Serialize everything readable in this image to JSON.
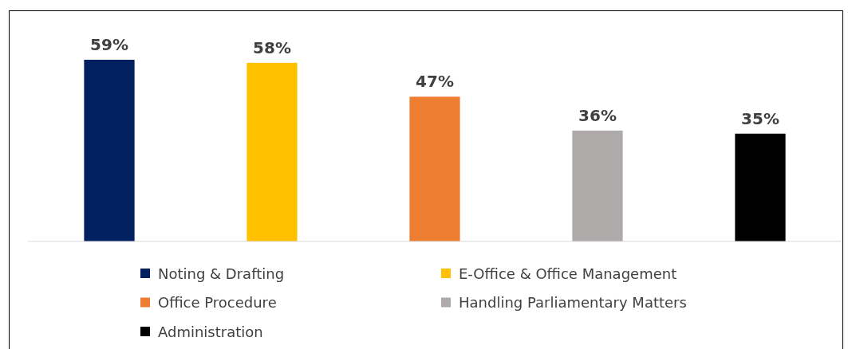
{
  "chart_data": {
    "type": "bar",
    "categories": [
      null,
      null,
      null,
      null,
      null
    ],
    "stacked": true,
    "series": [
      {
        "name": "Noting & Drafting",
        "color": "#002060",
        "values": [
          59,
          0,
          0,
          0,
          0
        ],
        "value_labels": [
          "59%",
          null,
          null,
          null,
          null
        ]
      },
      {
        "name": "E-Office & Office Management",
        "color": "#ffc000",
        "values": [
          0,
          58,
          0,
          0,
          0
        ],
        "value_labels": [
          null,
          "58%",
          null,
          null,
          null
        ]
      },
      {
        "name": "Office Procedure",
        "color": "#ed7d31",
        "values": [
          0,
          0,
          47,
          0,
          0
        ],
        "value_labels": [
          null,
          null,
          "47%",
          null,
          null
        ]
      },
      {
        "name": "Handling Parliamentary Matters",
        "color": "#aeaaaa",
        "values": [
          0,
          0,
          0,
          36,
          0
        ],
        "value_labels": [
          null,
          null,
          null,
          "36%",
          null
        ]
      },
      {
        "name": "Administration",
        "color": "#000000",
        "values": [
          0,
          0,
          0,
          0,
          35
        ],
        "value_labels": [
          null,
          null,
          null,
          null,
          "35%"
        ]
      }
    ],
    "legend": "bottom",
    "grid": false
  }
}
